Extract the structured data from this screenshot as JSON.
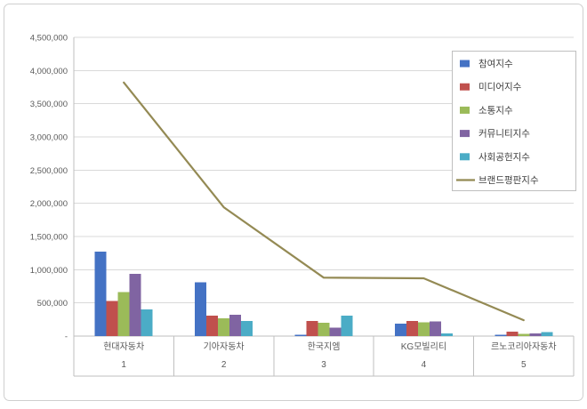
{
  "colors": {
    "grid": "#d9d9d9",
    "axis": "#bfbfbf",
    "frame_border": "#cfcfcf",
    "text": "#595959",
    "background": "#ffffff"
  },
  "chart_data": {
    "type": "bar",
    "subtype": "clustered-bar-with-line-overlay",
    "categories": [
      "현대자동차",
      "기아자동차",
      "한국지엠",
      "KG모빌리티",
      "르노코리아자동차"
    ],
    "category_ranks": [
      "1",
      "2",
      "3",
      "4",
      "5"
    ],
    "series": [
      {
        "name": "참여지수",
        "type": "bar",
        "color": "#4472C4",
        "values": [
          1270000,
          810000,
          20000,
          190000,
          20000
        ]
      },
      {
        "name": "미디어지수",
        "type": "bar",
        "color": "#C0504D",
        "values": [
          530000,
          310000,
          230000,
          230000,
          70000
        ]
      },
      {
        "name": "소통지수",
        "type": "bar",
        "color": "#9BBB59",
        "values": [
          660000,
          270000,
          200000,
          210000,
          35000
        ]
      },
      {
        "name": "커뮤니티지수",
        "type": "bar",
        "color": "#8064A2",
        "values": [
          940000,
          320000,
          130000,
          220000,
          40000
        ]
      },
      {
        "name": "사회공헌지수",
        "type": "bar",
        "color": "#4BACC6",
        "values": [
          400000,
          230000,
          310000,
          40000,
          60000
        ]
      },
      {
        "name": "브랜드평판지수",
        "type": "line",
        "color": "#948A54",
        "values": [
          3820000,
          1940000,
          880000,
          870000,
          240000
        ]
      }
    ],
    "ylim": [
      0,
      4500000
    ],
    "ytick_interval": 500000,
    "ytick_labels": [
      "-",
      "500,000",
      "1,000,000",
      "1,500,000",
      "2,000,000",
      "2,500,000",
      "3,000,000",
      "3,500,000",
      "4,000,000",
      "4,500,000"
    ],
    "grid": true,
    "legend_position": "top-right",
    "title": "",
    "xlabel": "",
    "ylabel": ""
  }
}
